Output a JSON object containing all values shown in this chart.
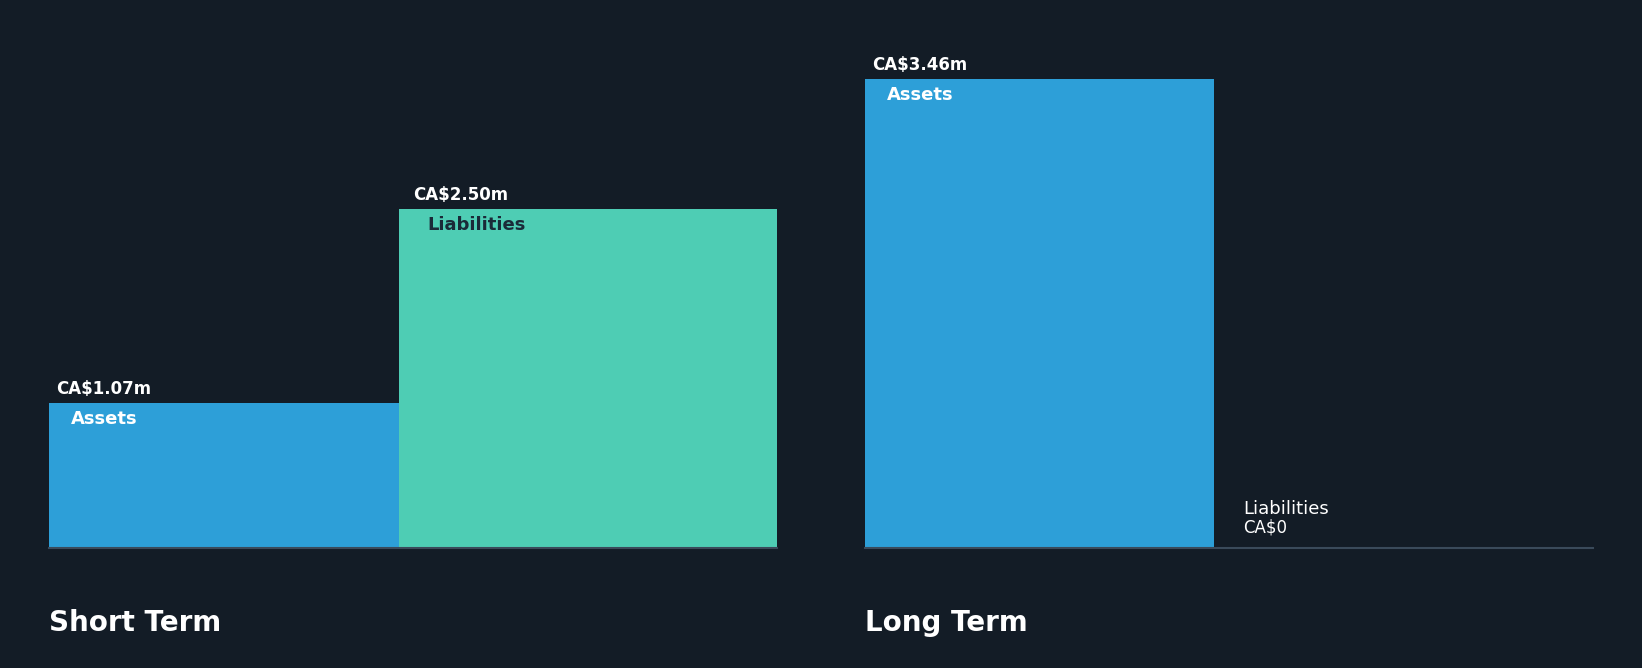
{
  "background_color": "#131c26",
  "groups": [
    {
      "label": "Short Term",
      "bars": [
        {
          "name": "Assets",
          "value": 1.07,
          "color": "#2d9fd8",
          "label_value": "CA$1.07m",
          "label_inside": "Assets",
          "label_inside_color": "#ffffff"
        },
        {
          "name": "Liabilities",
          "value": 2.5,
          "color": "#4ecdb4",
          "label_value": "CA$2.50m",
          "label_inside": "Liabilities",
          "label_inside_color": "#1a2a38"
        }
      ]
    },
    {
      "label": "Long Term",
      "bars": [
        {
          "name": "Assets",
          "value": 3.46,
          "color": "#2d9fd8",
          "label_value": "CA$3.46m",
          "label_inside": "Assets",
          "label_inside_color": "#ffffff"
        },
        {
          "name": "Liabilities",
          "value": 0.0,
          "color": "#2d9fd8",
          "label_value": "CA$0",
          "label_inside": "Liabilities",
          "label_inside_color": "#ffffff"
        }
      ]
    }
  ],
  "ylim_max": 3.8,
  "axis_line_color": "#3a4a5a",
  "label_value_color": "#ffffff",
  "label_value_fontsize": 12,
  "label_inside_fontsize": 13,
  "group_label_fontsize": 20
}
